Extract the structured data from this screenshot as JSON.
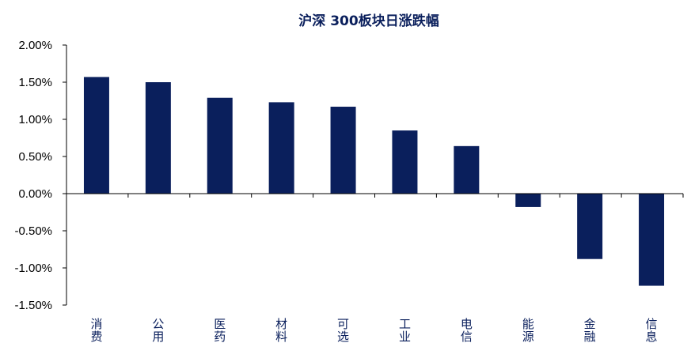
{
  "chart_data": {
    "type": "bar",
    "title": "沪深 300板块日涨跌幅",
    "xlabel": "",
    "ylabel": "",
    "categories": [
      "消费",
      "公用",
      "医药",
      "材料",
      "可选",
      "工业",
      "电信",
      "能源",
      "金融",
      "信息"
    ],
    "values": [
      1.57,
      1.5,
      1.29,
      1.23,
      1.17,
      0.85,
      0.64,
      -0.18,
      -0.88,
      -1.24
    ],
    "ylim": [
      -1.5,
      2.0
    ],
    "yticks": [
      2.0,
      1.5,
      1.0,
      0.5,
      0.0,
      -0.5,
      -1.0,
      -1.5
    ],
    "ytick_labels": [
      "2.00%",
      "1.50%",
      "1.00%",
      "0.50%",
      "0.00%",
      "-0.50%",
      "-1.00%",
      "-1.50%"
    ],
    "grid": false,
    "legend": "none",
    "bar_color": "#0a1f5c",
    "text_color": "#0a1f5c",
    "axis_color": "#000000"
  }
}
